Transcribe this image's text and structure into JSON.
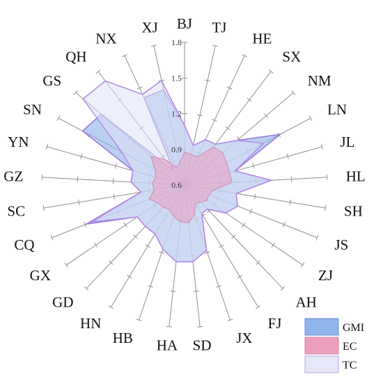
{
  "chart_data": {
    "type": "radar",
    "categories": [
      "BJ",
      "TJ",
      "HE",
      "SX",
      "NM",
      "LN",
      "JL",
      "HL",
      "SH",
      "JS",
      "ZJ",
      "AH",
      "FJ",
      "JX",
      "SD",
      "HA",
      "HB",
      "HN",
      "GD",
      "GX",
      "CQ",
      "SC",
      "GZ",
      "YN",
      "SN",
      "GS",
      "QH",
      "NX",
      "XJ"
    ],
    "rlim": [
      0.6,
      1.8
    ],
    "ticks": [
      0.6,
      0.9,
      1.2,
      1.5,
      1.8
    ],
    "tick_labels": [
      "0.6",
      "0.9",
      "1.2",
      "1.5",
      "1.8"
    ],
    "series": [
      {
        "name": "GMI",
        "color": "#8fb3ea",
        "values": [
          1.1,
          0.94,
          1.02,
          1.03,
          1.18,
          1.51,
          1.04,
          1.33,
          1.04,
          1.08,
          1.02,
          0.88,
          0.88,
          1.18,
          1.25,
          1.25,
          1.17,
          1.08,
          1.08,
          1.08,
          1.49,
          0.97,
          1.05,
          1.05,
          1.57,
          1.52,
          0.75,
          1.41,
          1.42
        ]
      },
      {
        "name": "EC",
        "color": "#ec9fbd",
        "values": [
          0.88,
          0.86,
          0.86,
          1.0,
          1.02,
          1.0,
          0.99,
          1.0,
          0.85,
          0.82,
          0.83,
          0.8,
          0.78,
          0.86,
          0.92,
          0.91,
          0.88,
          0.84,
          0.86,
          0.87,
          0.92,
          0.86,
          0.87,
          0.85,
          0.88,
          0.97,
          0.87,
          0.76,
          0.79
        ]
      },
      {
        "name": "TC",
        "color": "#e6e8f8",
        "values": [
          1.1,
          0.94,
          1.02,
          1.03,
          1.18,
          1.35,
          1.04,
          1.33,
          1.04,
          1.08,
          1.02,
          0.88,
          0.88,
          1.18,
          1.25,
          1.25,
          1.17,
          1.08,
          1.08,
          1.08,
          1.44,
          0.97,
          1.05,
          1.05,
          1.2,
          1.72,
          1.7,
          1.44,
          1.5
        ]
      }
    ],
    "legend": "bottom-right",
    "grid": true
  }
}
